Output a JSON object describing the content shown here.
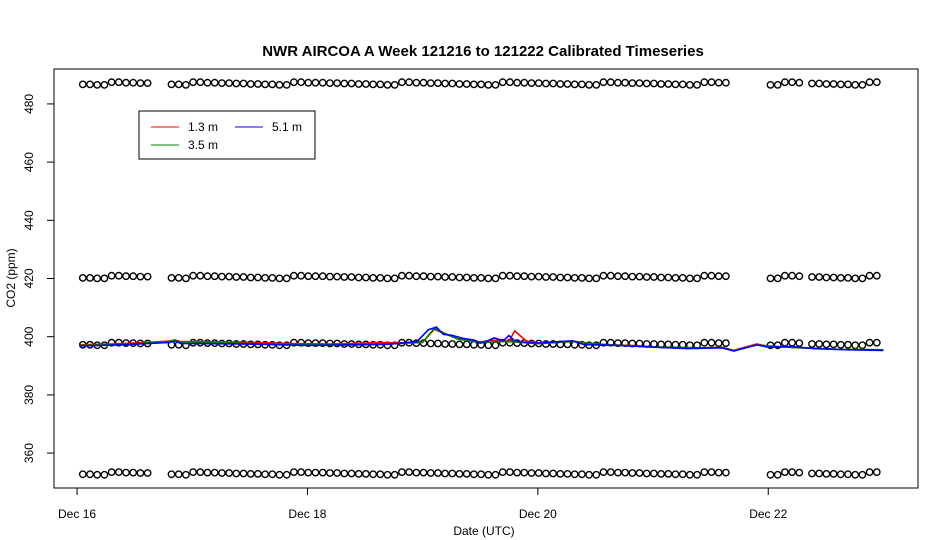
{
  "chart_data": {
    "type": "line",
    "title": "NWR AIRCOA A  Week 121216 to 121222  Calibrated Timeseries",
    "xlabel": "Date (UTC)",
    "ylabel": "CO2 (ppm)",
    "x_ticks": [
      "Dec 16",
      "Dec 18",
      "Dec 20",
      "Dec 22"
    ],
    "x_tick_values": [
      0,
      2,
      4,
      6
    ],
    "y_ticks": [
      360,
      380,
      400,
      420,
      440,
      460,
      480
    ],
    "xlim": [
      -0.2,
      7.3
    ],
    "ylim": [
      348,
      492
    ],
    "grid": false,
    "legend_position": "top-left",
    "legend": [
      {
        "name": "1.3 m",
        "color": "#ff0000"
      },
      {
        "name": "3.5 m",
        "color": "#008000"
      },
      {
        "name": "5.1 m",
        "color": "#0000ff"
      }
    ],
    "series": [
      {
        "name": "1.3 m",
        "color": "#ff0000",
        "x": [
          0.02,
          0.3,
          0.6,
          0.8,
          0.85,
          0.9,
          1.2,
          1.5,
          1.9,
          2.2,
          2.4,
          2.6,
          2.8,
          3.0,
          3.1,
          3.3,
          3.5,
          3.6,
          3.75,
          3.8,
          3.9,
          4.0,
          4.2,
          4.3,
          4.5,
          4.8,
          5.0,
          5.3,
          5.6,
          5.7,
          5.9,
          6.0,
          6.3,
          6.6,
          7.0
        ],
        "y": [
          397.2,
          397.5,
          398.0,
          398.5,
          398.9,
          398.3,
          398.2,
          398.0,
          397.6,
          397.5,
          397.7,
          398.0,
          397.9,
          398.1,
          402.5,
          399.3,
          398.2,
          398.8,
          398.5,
          402.0,
          398.5,
          397.8,
          398.2,
          398.5,
          397.4,
          397.0,
          396.5,
          396.0,
          396.4,
          395.3,
          397.5,
          396.7,
          396.2,
          395.6,
          395.5
        ]
      },
      {
        "name": "3.5 m",
        "color": "#008000",
        "x": [
          0.02,
          0.4,
          0.8,
          0.85,
          0.9,
          1.3,
          1.8,
          2.3,
          2.7,
          3.0,
          3.1,
          3.3,
          3.5,
          3.7,
          3.8,
          4.0,
          4.3,
          4.6,
          5.0,
          5.4,
          5.6,
          5.7,
          5.9,
          6.2,
          6.6,
          7.0
        ],
        "y": [
          397.0,
          397.3,
          398.3,
          398.7,
          398.0,
          397.9,
          397.3,
          397.2,
          397.5,
          398.0,
          402.8,
          399.2,
          398.0,
          398.4,
          398.2,
          397.6,
          398.3,
          397.2,
          396.5,
          396.2,
          396.3,
          395.2,
          397.1,
          396.3,
          395.7,
          395.5
        ]
      },
      {
        "name": "5.1 m",
        "color": "#0000ff",
        "x": [
          0.02,
          0.4,
          0.8,
          0.85,
          0.9,
          1.2,
          1.6,
          2.0,
          2.4,
          2.7,
          2.95,
          3.05,
          3.12,
          3.18,
          3.25,
          3.35,
          3.45,
          3.5,
          3.55,
          3.62,
          3.7,
          3.75,
          3.8,
          3.9,
          4.0,
          4.2,
          4.3,
          4.4,
          4.7,
          5.0,
          5.3,
          5.6,
          5.7,
          5.9,
          6.0,
          6.2,
          6.4,
          6.7,
          7.0
        ],
        "y": [
          396.8,
          397.2,
          398.0,
          398.5,
          397.7,
          397.6,
          397.4,
          397.0,
          397.2,
          397.4,
          398.3,
          402.4,
          403.3,
          400.8,
          400.5,
          399.4,
          398.8,
          397.8,
          398.3,
          399.6,
          398.6,
          400.4,
          398.6,
          398.0,
          397.8,
          398.3,
          398.6,
          397.3,
          397.0,
          396.4,
          395.9,
          396.2,
          395.1,
          397.2,
          396.4,
          396.6,
          395.9,
          395.5,
          395.3
        ]
      }
    ],
    "calibration_markers": {
      "levels": [
        487,
        420.5,
        397.5,
        353
      ],
      "x_ranges": [
        [
          0.05,
          0.65
        ],
        [
          0.82,
          5.65
        ],
        [
          6.02,
          6.3
        ],
        [
          6.38,
          7.0
        ]
      ],
      "spacing": 0.0625
    }
  }
}
